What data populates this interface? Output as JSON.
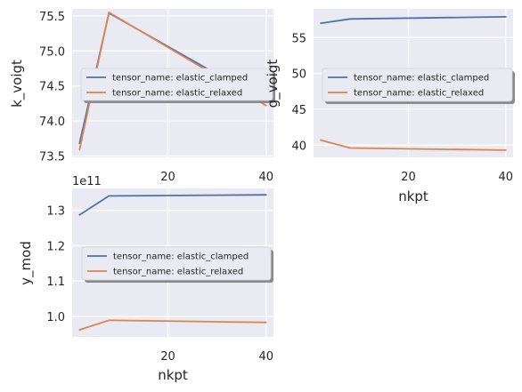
{
  "chart_data": [
    {
      "type": "line",
      "xlabel": "",
      "ylabel": "k_voigt",
      "x": [
        2,
        8,
        40
      ],
      "xticks": [
        20,
        40
      ],
      "xlim": [
        0.5,
        41.5
      ],
      "yticks": [
        "73.5",
        "74.0",
        "74.5",
        "75.0",
        "75.5"
      ],
      "ylim": [
        73.48,
        75.6
      ],
      "series": [
        {
          "name": "tensor_name: elastic_clamped",
          "color": "#4c72b0",
          "values": [
            73.68,
            75.54,
            74.27
          ]
        },
        {
          "name": "tensor_name: elastic_relaxed",
          "color": "#dd8452",
          "values": [
            73.59,
            75.55,
            74.22
          ]
        }
      ],
      "legend": "center-left",
      "grid": true
    },
    {
      "type": "line",
      "xlabel": "nkpt",
      "ylabel": "g_voigt",
      "x": [
        2,
        8,
        40
      ],
      "xticks": [
        20,
        40
      ],
      "xlim": [
        0.5,
        41.5
      ],
      "yticks": [
        "40",
        "45",
        "50",
        "55"
      ],
      "ylim": [
        38.3,
        59.0
      ],
      "series": [
        {
          "name": "tensor_name: elastic_clamped",
          "color": "#4c72b0",
          "values": [
            57.0,
            57.6,
            57.9
          ]
        },
        {
          "name": "tensor_name: elastic_relaxed",
          "color": "#dd8452",
          "values": [
            40.7,
            39.6,
            39.3
          ]
        }
      ],
      "legend": "center",
      "grid": true
    },
    {
      "type": "line",
      "xlabel": "nkpt",
      "ylabel": "y_mod",
      "offset_label": "1e11",
      "x": [
        2,
        8,
        40
      ],
      "xticks": [
        20,
        40
      ],
      "xlim": [
        0.5,
        41.5
      ],
      "yticks": [
        "1.0",
        "1.1",
        "1.2",
        "1.3"
      ],
      "ylim": [
        0.942,
        1.362
      ],
      "series": [
        {
          "name": "tensor_name: elastic_clamped",
          "color": "#4c72b0",
          "values": [
            1.287,
            1.341,
            1.344
          ]
        },
        {
          "name": "tensor_name: elastic_relaxed",
          "color": "#dd8452",
          "values": [
            0.962,
            0.989,
            0.983
          ]
        }
      ],
      "legend": "center",
      "grid": true
    }
  ]
}
